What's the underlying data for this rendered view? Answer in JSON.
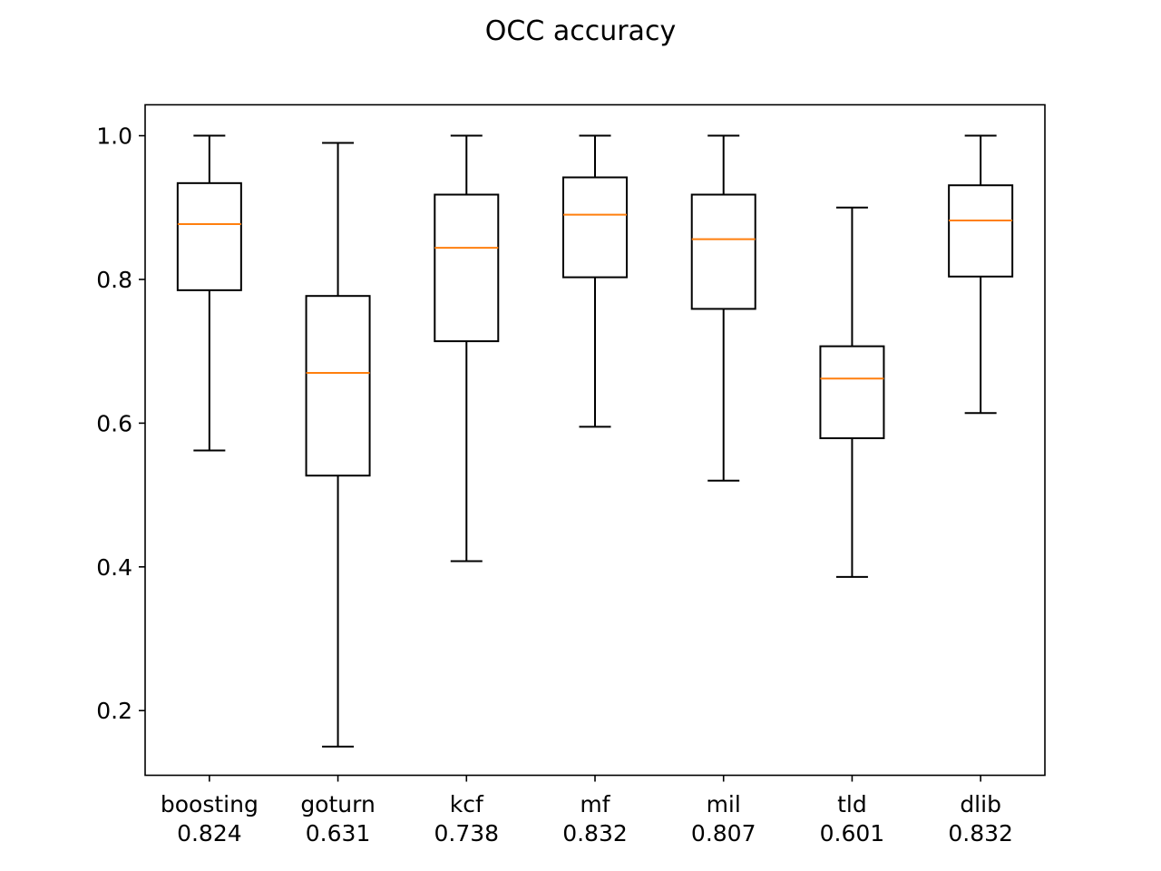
{
  "chart_data": {
    "type": "box",
    "title": "OCC accuracy",
    "xlabel": "",
    "ylabel": "",
    "ylim": [
      0.11,
      1.043
    ],
    "yticks": [
      "0.2",
      "0.4",
      "0.6",
      "0.8",
      "1.0"
    ],
    "grid": false,
    "categories": [
      {
        "name": "boosting",
        "score": "0.824"
      },
      {
        "name": "goturn",
        "score": "0.631"
      },
      {
        "name": "kcf",
        "score": "0.738"
      },
      {
        "name": "mf",
        "score": "0.832"
      },
      {
        "name": "mil",
        "score": "0.807"
      },
      {
        "name": "tld",
        "score": "0.601"
      },
      {
        "name": "dlib",
        "score": "0.832"
      }
    ],
    "boxes": [
      {
        "whisker_low": 0.562,
        "q1": 0.785,
        "median": 0.877,
        "q3": 0.934,
        "whisker_high": 1.0
      },
      {
        "whisker_low": 0.15,
        "q1": 0.527,
        "median": 0.67,
        "q3": 0.777,
        "whisker_high": 0.99
      },
      {
        "whisker_low": 0.408,
        "q1": 0.714,
        "median": 0.844,
        "q3": 0.918,
        "whisker_high": 1.0
      },
      {
        "whisker_low": 0.595,
        "q1": 0.803,
        "median": 0.89,
        "q3": 0.942,
        "whisker_high": 1.0
      },
      {
        "whisker_low": 0.52,
        "q1": 0.759,
        "median": 0.856,
        "q3": 0.918,
        "whisker_high": 1.0
      },
      {
        "whisker_low": 0.386,
        "q1": 0.579,
        "median": 0.662,
        "q3": 0.707,
        "whisker_high": 0.9
      },
      {
        "whisker_low": 0.614,
        "q1": 0.804,
        "median": 0.882,
        "q3": 0.931,
        "whisker_high": 1.0
      }
    ],
    "colors": {
      "box": "#000000",
      "median": "#ff7f0e"
    }
  }
}
